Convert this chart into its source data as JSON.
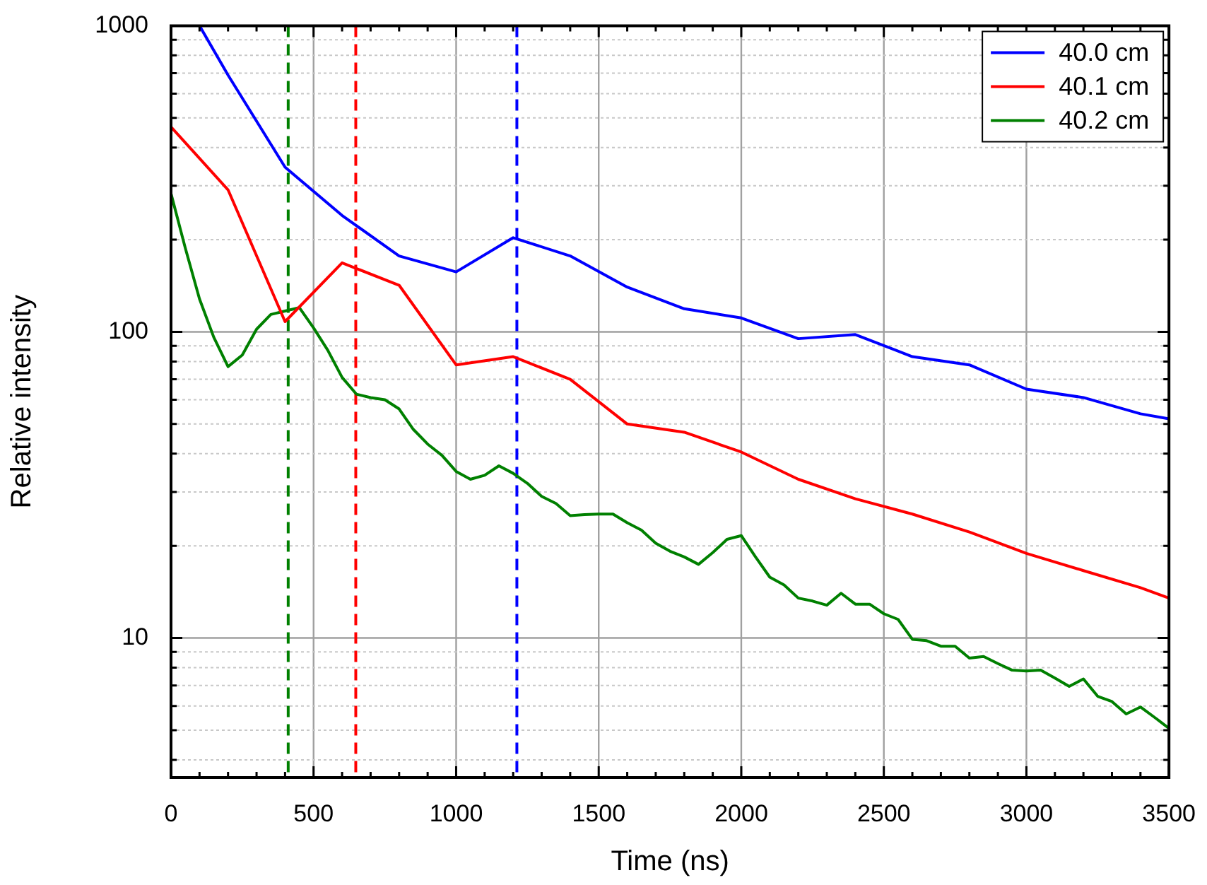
{
  "chart_data": {
    "type": "line",
    "xlabel": "Time (ns)",
    "ylabel": "Relative intensity",
    "log": "y",
    "grid": true,
    "legend": "top right",
    "marker": "none",
    "line_style": "solid",
    "xlim": [
      0,
      3500
    ],
    "xticks": [
      0,
      {
        "value": 100,
        "label": null
      },
      {
        "value": 200,
        "label": null
      },
      {
        "value": 300,
        "label": null
      },
      {
        "value": 400,
        "label": null
      },
      500,
      {
        "value": 600,
        "label": null
      },
      {
        "value": 700,
        "label": null
      },
      {
        "value": 800,
        "label": null
      },
      {
        "value": 900,
        "label": null
      },
      1000,
      {
        "value": 1100,
        "label": null
      },
      {
        "value": 1200,
        "label": null
      },
      {
        "value": 1300,
        "label": null
      },
      {
        "value": 1400,
        "label": null
      },
      1500,
      {
        "value": 1600,
        "label": null
      },
      {
        "value": 1700,
        "label": null
      },
      {
        "value": 1800,
        "label": null
      },
      {
        "value": 1900,
        "label": null
      },
      2000,
      {
        "value": 2100,
        "label": null
      },
      {
        "value": 2200,
        "label": null
      },
      {
        "value": 2300,
        "label": null
      },
      {
        "value": 2400,
        "label": null
      },
      2500,
      {
        "value": 2600,
        "label": null
      },
      {
        "value": 2700,
        "label": null
      },
      {
        "value": 2800,
        "label": null
      },
      {
        "value": 2900,
        "label": null
      },
      3000,
      {
        "value": 3100,
        "label": null
      },
      {
        "value": 3200,
        "label": null
      },
      {
        "value": 3300,
        "label": null
      },
      {
        "value": 3400,
        "label": null
      },
      3500
    ],
    "ylim": [
      3.5,
      1000
    ],
    "yticks": [
      {
        "value": 4,
        "label": null
      },
      {
        "value": 5,
        "label": null
      },
      {
        "value": 6,
        "label": null
      },
      {
        "value": 7,
        "label": null
      },
      {
        "value": 8,
        "label": null
      },
      {
        "value": 9,
        "label": null
      },
      10,
      {
        "value": 20,
        "label": null
      },
      {
        "value": 30,
        "label": null
      },
      {
        "value": 40,
        "label": null
      },
      {
        "value": 50,
        "label": null
      },
      {
        "value": 60,
        "label": null
      },
      {
        "value": 70,
        "label": null
      },
      {
        "value": 80,
        "label": null
      },
      {
        "value": 90,
        "label": null
      },
      100,
      {
        "value": 200,
        "label": null
      },
      {
        "value": 300,
        "label": null
      },
      {
        "value": 400,
        "label": null
      },
      {
        "value": 500,
        "label": null
      },
      {
        "value": 600,
        "label": null
      },
      {
        "value": 700,
        "label": null
      },
      {
        "value": 800,
        "label": null
      },
      {
        "value": 900,
        "label": null
      },
      1000
    ],
    "ref_lines": [
      {
        "axis": "x",
        "value": 411,
        "color": "#008000",
        "line_style": "dashed"
      },
      {
        "axis": "x",
        "value": 648,
        "color": "#ff0000",
        "line_style": "dashed"
      },
      {
        "axis": "x",
        "value": 1213,
        "color": "#0000ff",
        "line_style": "dashed"
      }
    ],
    "series": [
      {
        "name": "40.0 cm",
        "color": "#0000ff",
        "x": [
          100,
          200,
          400,
          600,
          800,
          1000,
          1200,
          1400,
          1600,
          1800,
          2000,
          2200,
          2400,
          2600,
          2800,
          3000,
          3200,
          3400,
          3500
        ],
        "values": [
          1000,
          690,
          345,
          240,
          177,
          157,
          203,
          177,
          140,
          119,
          111,
          95,
          98,
          83,
          78,
          65,
          61,
          54,
          52
        ]
      },
      {
        "name": "40.1 cm",
        "color": "#ff0000",
        "x": [
          0,
          200,
          400,
          600,
          800,
          1000,
          1200,
          1400,
          1600,
          1800,
          2000,
          2200,
          2400,
          2600,
          2800,
          3000,
          3200,
          3400,
          3500
        ],
        "values": [
          467,
          291,
          108,
          168,
          142,
          78,
          83,
          70,
          50,
          47,
          40.5,
          33,
          28.5,
          25.4,
          22.2,
          18.9,
          16.6,
          14.6,
          13.5
        ]
      },
      {
        "name": "40.2 cm",
        "color": "#008000",
        "x": [
          0,
          50,
          100,
          150,
          200,
          250,
          300,
          350,
          400,
          450,
          500,
          550,
          600,
          650,
          700,
          750,
          800,
          850,
          900,
          950,
          1000,
          1050,
          1100,
          1150,
          1200,
          1250,
          1300,
          1350,
          1400,
          1450,
          1500,
          1550,
          1600,
          1650,
          1700,
          1750,
          1800,
          1850,
          1900,
          1950,
          2000,
          2050,
          2100,
          2150,
          2200,
          2250,
          2300,
          2350,
          2400,
          2450,
          2500,
          2550,
          2600,
          2650,
          2700,
          2750,
          2800,
          2850,
          2900,
          2950,
          3000,
          3050,
          3100,
          3150,
          3200,
          3250,
          3300,
          3350,
          3400,
          3450,
          3500
        ],
        "values": [
          283,
          188,
          128,
          96,
          77,
          84,
          102,
          114,
          117,
          120,
          103,
          87,
          71,
          62.6,
          61,
          60,
          56,
          48,
          43,
          39.5,
          35,
          33,
          34,
          36.5,
          34.5,
          32,
          29,
          27.5,
          25.1,
          25.3,
          25.4,
          25.4,
          23.8,
          22.5,
          20.4,
          19.2,
          18.4,
          17.4,
          19,
          21,
          21.6,
          18.4,
          15.8,
          14.9,
          13.5,
          13.2,
          12.8,
          14,
          12.9,
          12.9,
          12,
          11.5,
          9.9,
          9.8,
          9.4,
          9.4,
          8.6,
          8.7,
          8.25,
          7.85,
          7.8,
          7.85,
          7.4,
          6.95,
          7.35,
          6.45,
          6.2,
          5.65,
          5.95,
          5.5,
          5.07
        ]
      }
    ]
  }
}
